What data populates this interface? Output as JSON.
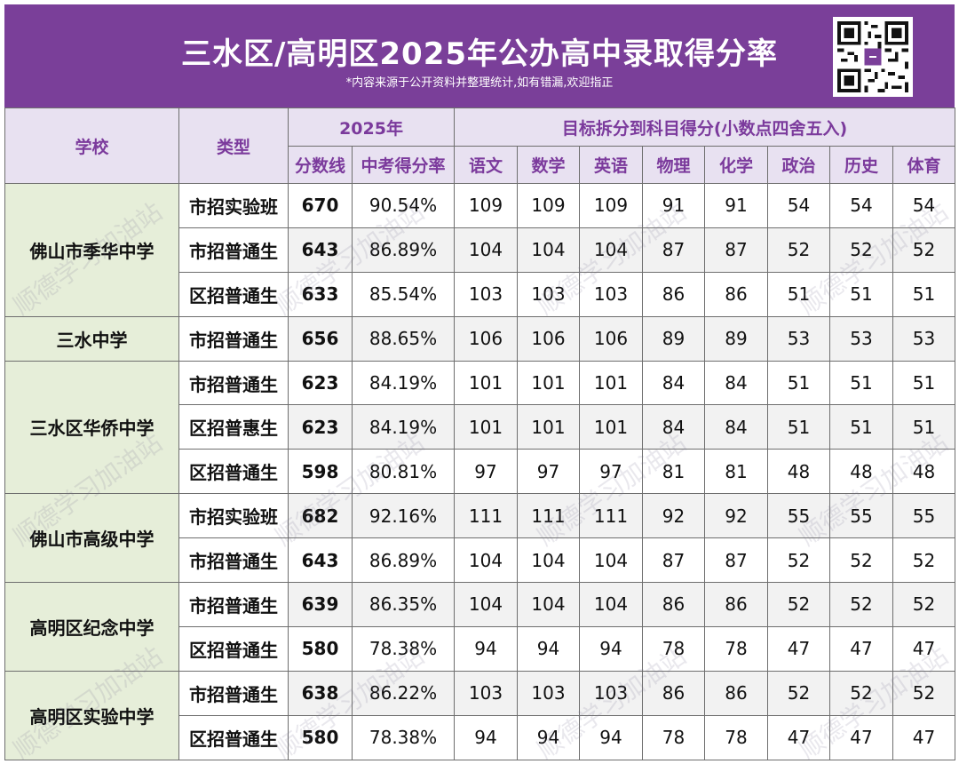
{
  "header": {
    "title": "三水区/高明区2025年公办高中录取得分率",
    "subtitle": "*内容来源于公开资料并整理统计,如有错漏,欢迎指正",
    "qr_icon": "qr-code-icon"
  },
  "table": {
    "col_school": "学校",
    "col_type": "类型",
    "group_year": "2025年",
    "group_target": "目标拆分到科目得分(小数点四舍五入)",
    "col_score": "分数线",
    "col_rate": "中考得分率",
    "subjects": [
      "语文",
      "数学",
      "英语",
      "物理",
      "化学",
      "政治",
      "历史",
      "体育"
    ],
    "schools": [
      {
        "name": "佛山市季华中学",
        "rows": [
          {
            "type": "市招实验班",
            "score": "670",
            "rate": "90.54%",
            "subjects": [
              "109",
              "109",
              "109",
              "91",
              "91",
              "54",
              "54",
              "54"
            ]
          },
          {
            "type": "市招普通生",
            "score": "643",
            "rate": "86.89%",
            "subjects": [
              "104",
              "104",
              "104",
              "87",
              "87",
              "52",
              "52",
              "52"
            ]
          },
          {
            "type": "区招普通生",
            "score": "633",
            "rate": "85.54%",
            "subjects": [
              "103",
              "103",
              "103",
              "86",
              "86",
              "51",
              "51",
              "51"
            ]
          }
        ]
      },
      {
        "name": "三水中学",
        "rows": [
          {
            "type": "市招普通生",
            "score": "656",
            "rate": "88.65%",
            "subjects": [
              "106",
              "106",
              "106",
              "89",
              "89",
              "53",
              "53",
              "53"
            ]
          }
        ]
      },
      {
        "name": "三水区华侨中学",
        "rows": [
          {
            "type": "市招普通生",
            "score": "623",
            "rate": "84.19%",
            "subjects": [
              "101",
              "101",
              "101",
              "84",
              "84",
              "51",
              "51",
              "51"
            ]
          },
          {
            "type": "区招普惠生",
            "score": "623",
            "rate": "84.19%",
            "subjects": [
              "101",
              "101",
              "101",
              "84",
              "84",
              "51",
              "51",
              "51"
            ]
          },
          {
            "type": "区招普通生",
            "score": "598",
            "rate": "80.81%",
            "subjects": [
              "97",
              "97",
              "97",
              "81",
              "81",
              "48",
              "48",
              "48"
            ]
          }
        ]
      },
      {
        "name": "佛山市高级中学",
        "rows": [
          {
            "type": "市招实验班",
            "score": "682",
            "rate": "92.16%",
            "subjects": [
              "111",
              "111",
              "111",
              "92",
              "92",
              "55",
              "55",
              "55"
            ]
          },
          {
            "type": "市招普通生",
            "score": "643",
            "rate": "86.89%",
            "subjects": [
              "104",
              "104",
              "104",
              "87",
              "87",
              "52",
              "52",
              "52"
            ]
          }
        ]
      },
      {
        "name": "高明区纪念中学",
        "rows": [
          {
            "type": "市招普通生",
            "score": "639",
            "rate": "86.35%",
            "subjects": [
              "104",
              "104",
              "104",
              "86",
              "86",
              "52",
              "52",
              "52"
            ]
          },
          {
            "type": "区招普通生",
            "score": "580",
            "rate": "78.38%",
            "subjects": [
              "94",
              "94",
              "94",
              "78",
              "78",
              "47",
              "47",
              "47"
            ]
          }
        ]
      },
      {
        "name": "高明区实验中学",
        "rows": [
          {
            "type": "市招普通生",
            "score": "638",
            "rate": "86.22%",
            "subjects": [
              "103",
              "103",
              "103",
              "86",
              "86",
              "52",
              "52",
              "52"
            ]
          },
          {
            "type": "区招普通生",
            "score": "580",
            "rate": "78.38%",
            "subjects": [
              "94",
              "94",
              "94",
              "78",
              "78",
              "47",
              "47",
              "47"
            ]
          }
        ]
      }
    ]
  },
  "watermark": "顺德学习加油站",
  "colors": {
    "banner": "#7a3f99",
    "header_bg": "#e8e1f1",
    "header_text": "#7b3a9c",
    "school_bg": "#e6eed9",
    "score_text": "#7b3a9c",
    "row_shade": "#f2f2f2"
  }
}
